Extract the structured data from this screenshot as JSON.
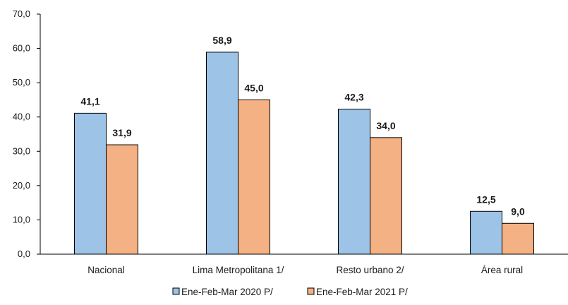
{
  "chart_data": {
    "type": "bar",
    "title": "",
    "xlabel": "",
    "ylabel": "",
    "ylim": [
      0,
      70
    ],
    "yticks": [
      "0,0",
      "10,0",
      "20,0",
      "30,0",
      "40,0",
      "50,0",
      "60,0",
      "70,0"
    ],
    "ytick_values": [
      0,
      10,
      20,
      30,
      40,
      50,
      60,
      70
    ],
    "categories": [
      "Nacional",
      "Lima Metropolitana 1/",
      "Resto urbano 2/",
      "Área rural"
    ],
    "series": [
      {
        "name": "Ene-Feb-Mar 2020 P/",
        "color": "#9DC3E6",
        "values": [
          41.1,
          58.9,
          42.3,
          12.5
        ],
        "labels": [
          "41,1",
          "58,9",
          "42,3",
          "12,5"
        ]
      },
      {
        "name": "Ene-Feb-Mar 2021 P/",
        "color": "#F4B183",
        "values": [
          31.9,
          45.0,
          34.0,
          9.0
        ],
        "labels": [
          "31,9",
          "45,0",
          "34,0",
          "9,0"
        ]
      }
    ],
    "grid": false,
    "legend_position": "bottom"
  }
}
